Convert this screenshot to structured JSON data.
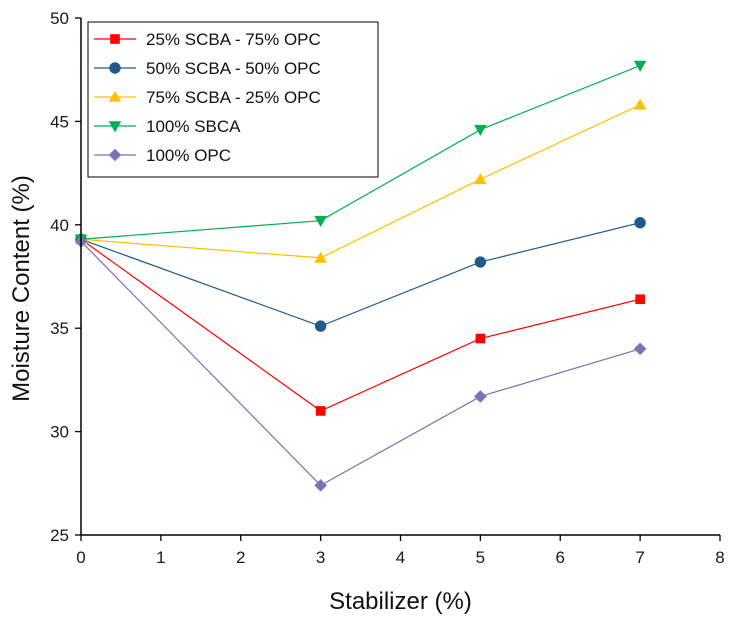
{
  "chart_data": {
    "type": "line",
    "title": "",
    "xlabel": "Stabilizer (%)",
    "ylabel": "Moisture Content (%)",
    "xlim": [
      0,
      8
    ],
    "ylim": [
      25,
      50
    ],
    "xticks": [
      0,
      1,
      2,
      3,
      4,
      5,
      6,
      7,
      8
    ],
    "yticks": [
      25,
      30,
      35,
      40,
      45,
      50
    ],
    "legend_position": "top-left",
    "grid": false,
    "x": [
      0,
      3,
      5,
      7
    ],
    "series": [
      {
        "name": "25% SCBA - 75% OPC",
        "color": "#ff0000",
        "marker": "square",
        "values": [
          39.3,
          31.0,
          34.5,
          36.4
        ]
      },
      {
        "name": "50% SCBA - 50% OPC",
        "color": "#1f5a8a",
        "marker": "circle",
        "values": [
          39.3,
          35.1,
          38.2,
          40.1
        ]
      },
      {
        "name": "75% SCBA - 25% OPC",
        "color": "#ffc000",
        "marker": "triangle-up",
        "values": [
          39.3,
          38.4,
          42.2,
          45.8
        ]
      },
      {
        "name": "100% SBCA",
        "color": "#00b050",
        "marker": "triangle-down",
        "values": [
          39.3,
          40.2,
          44.6,
          47.7
        ]
      },
      {
        "name": "100% OPC",
        "color": "#7b71b5",
        "marker": "diamond",
        "values": [
          39.2,
          27.4,
          31.7,
          34.0
        ]
      }
    ]
  }
}
